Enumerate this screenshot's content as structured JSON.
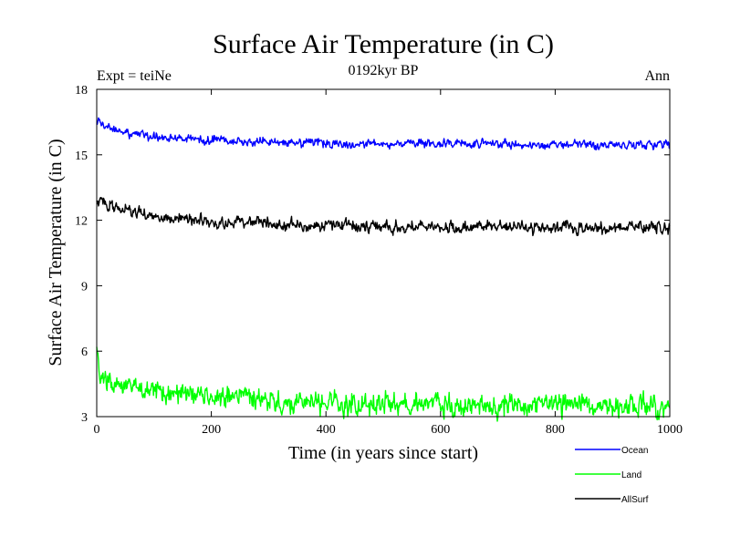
{
  "chart_data": {
    "type": "line",
    "title": "Surface Air Temperature (in C)",
    "subtitle": "0192kyr BP",
    "left_label": "Expt = teiNe",
    "right_label": "Ann",
    "xlabel": "Time (in years since start)",
    "ylabel": "Surface Air Temperature (in C)",
    "xlim": [
      0,
      1000
    ],
    "ylim": [
      3,
      18
    ],
    "xticks": [
      0,
      200,
      400,
      600,
      800,
      1000
    ],
    "yticks": [
      3,
      6,
      9,
      12,
      15,
      18
    ],
    "grid": false,
    "legend_position": "bottom-right, outside plot",
    "series": [
      {
        "name": "Ocean",
        "color": "#0000ff",
        "x": [
          0,
          20,
          40,
          60,
          80,
          100,
          150,
          200,
          300,
          400,
          500,
          600,
          700,
          800,
          900,
          1000
        ],
        "values": [
          16.5,
          16.3,
          16.1,
          16.0,
          15.9,
          15.8,
          15.75,
          15.7,
          15.6,
          15.55,
          15.5,
          15.5,
          15.5,
          15.45,
          15.45,
          15.45
        ],
        "noise": 0.18
      },
      {
        "name": "Land",
        "color": "#00ff00",
        "x": [
          0,
          3,
          10,
          30,
          60,
          100,
          150,
          200,
          300,
          400,
          500,
          600,
          700,
          800,
          900,
          1000
        ],
        "values": [
          5.9,
          5.1,
          4.8,
          4.6,
          4.4,
          4.2,
          4.0,
          3.9,
          3.7,
          3.65,
          3.6,
          3.55,
          3.55,
          3.5,
          3.5,
          3.5
        ],
        "noise": 0.45
      },
      {
        "name": "AllSurf",
        "color": "#000000",
        "x": [
          0,
          10,
          30,
          60,
          100,
          150,
          200,
          300,
          400,
          500,
          600,
          700,
          800,
          900,
          1000
        ],
        "values": [
          13.0,
          12.8,
          12.6,
          12.4,
          12.2,
          12.05,
          11.95,
          11.85,
          11.75,
          11.7,
          11.7,
          11.68,
          11.65,
          11.65,
          11.65
        ],
        "noise": 0.25
      }
    ]
  }
}
